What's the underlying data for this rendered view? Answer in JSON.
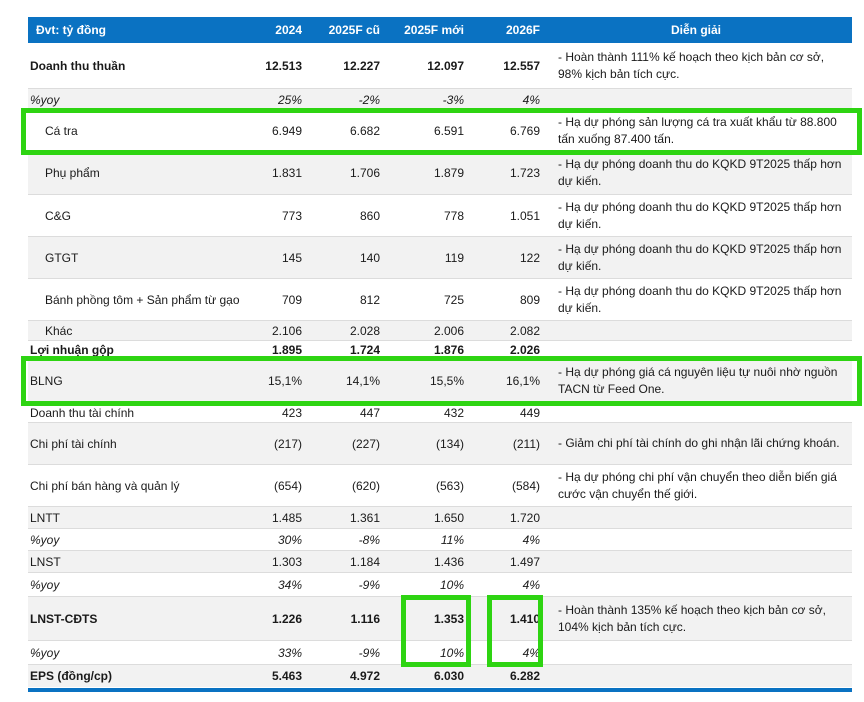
{
  "colors": {
    "header_bg": "#0a72c2",
    "header_text": "#ffffff",
    "highlight_green": "#2ed412",
    "row_shade": "#f2f2f2",
    "separator": "#dcdcdc",
    "bottom_bar": "#0a72c2"
  },
  "table": {
    "header": [
      "Đvt: tỷ đồng",
      "2024",
      "2025F cũ",
      "2025F mới",
      "2026F",
      "Diễn giải"
    ],
    "rows": [
      {
        "label": "Doanh thu thuần",
        "values": [
          "12.513",
          "12.227",
          "12.097",
          "12.557"
        ],
        "note": "- Hoàn thành 111% kế hoạch theo kịch bản cơ sở, 98% kịch bản tích cực.",
        "bold": true,
        "italic": false,
        "indent": false
      },
      {
        "label": "%yoy",
        "values": [
          "25%",
          "-2%",
          "-3%",
          "4%"
        ],
        "note": "",
        "bold": false,
        "italic": true,
        "indent": false
      },
      {
        "label": "Cá tra",
        "values": [
          "6.949",
          "6.682",
          "6.591",
          "6.769"
        ],
        "note": "- Hạ dự phóng sản lượng cá tra xuất khẩu từ 88.800 tấn xuống 87.400 tấn.",
        "bold": false,
        "italic": false,
        "indent": true
      },
      {
        "label": "Phụ phẩm",
        "values": [
          "1.831",
          "1.706",
          "1.879",
          "1.723"
        ],
        "note": "- Hạ dự phóng doanh thu do KQKD 9T2025 thấp hơn dự kiến.",
        "bold": false,
        "italic": false,
        "indent": true
      },
      {
        "label": "C&G",
        "values": [
          "773",
          "860",
          "778",
          "1.051"
        ],
        "note": "- Hạ dự phóng doanh thu do KQKD 9T2025 thấp hơn dự kiến.",
        "bold": false,
        "italic": false,
        "indent": true
      },
      {
        "label": "GTGT",
        "values": [
          "145",
          "140",
          "119",
          "122"
        ],
        "note": "- Hạ dự phóng doanh thu do KQKD 9T2025 thấp hơn dự kiến.",
        "bold": false,
        "italic": false,
        "indent": true
      },
      {
        "label": "Bánh phồng tôm + Sản phẩm từ gạo",
        "values": [
          "709",
          "812",
          "725",
          "809"
        ],
        "note": "- Hạ dự phóng doanh thu do KQKD 9T2025 thấp hơn dự kiến.",
        "bold": false,
        "italic": false,
        "indent": true
      },
      {
        "label": "Khác",
        "values": [
          "2.106",
          "2.028",
          "2.006",
          "2.082"
        ],
        "note": "",
        "bold": false,
        "italic": false,
        "indent": true
      },
      {
        "label": "Lợi nhuận gộp",
        "values": [
          "1.895",
          "1.724",
          "1.876",
          "2.026"
        ],
        "note": "",
        "bold": true,
        "italic": false,
        "indent": false
      },
      {
        "label": "BLNG",
        "values": [
          "15,1%",
          "14,1%",
          "15,5%",
          "16,1%"
        ],
        "note": "- Hạ dự phóng giá cá nguyên liệu tự nuôi nhờ nguồn TACN từ Feed One.",
        "bold": false,
        "italic": false,
        "indent": false
      },
      {
        "label": "Doanh thu tài chính",
        "values": [
          "423",
          "447",
          "432",
          "449"
        ],
        "note": "",
        "bold": false,
        "italic": false,
        "indent": false
      },
      {
        "label": "Chi phí tài chính",
        "values": [
          "(217)",
          "(227)",
          "(134)",
          "(211)"
        ],
        "note": "- Giảm chi phí tài chính do ghi nhận lãi chứng khoán.",
        "bold": false,
        "italic": false,
        "indent": false
      },
      {
        "label": "Chi phí bán hàng và quản lý",
        "values": [
          "(654)",
          "(620)",
          "(563)",
          "(584)"
        ],
        "note": "- Hạ dự phóng chi phí vận chuyển theo diễn biến giá cước vận chuyển thế giới.",
        "bold": false,
        "italic": false,
        "indent": false
      },
      {
        "label": "LNTT",
        "values": [
          "1.485",
          "1.361",
          "1.650",
          "1.720"
        ],
        "note": "",
        "bold": false,
        "italic": false,
        "indent": false
      },
      {
        "label": "%yoy",
        "values": [
          "30%",
          "-8%",
          "11%",
          "4%"
        ],
        "note": "",
        "bold": false,
        "italic": true,
        "indent": false
      },
      {
        "label": "LNST",
        "values": [
          "1.303",
          "1.184",
          "1.436",
          "1.497"
        ],
        "note": "",
        "bold": false,
        "italic": false,
        "indent": false
      },
      {
        "label": "%yoy",
        "values": [
          "34%",
          "-9%",
          "10%",
          "4%"
        ],
        "note": "",
        "bold": false,
        "italic": true,
        "indent": false
      },
      {
        "label": "LNST-CĐTS",
        "values": [
          "1.226",
          "1.116",
          "1.353",
          "1.410"
        ],
        "note": "- Hoàn thành 135% kế hoạch theo kịch bản cơ sở, 104% kịch bản tích cực.",
        "bold": true,
        "italic": false,
        "indent": false
      },
      {
        "label": "%yoy",
        "values": [
          "33%",
          "-9%",
          "10%",
          "4%"
        ],
        "note": "",
        "bold": false,
        "italic": true,
        "indent": false
      },
      {
        "label": "EPS (đồng/cp)",
        "values": [
          "5.463",
          "4.972",
          "6.030",
          "6.282"
        ],
        "note": "",
        "bold": true,
        "italic": false,
        "indent": false
      }
    ]
  },
  "annotations": {
    "row_boxes": [
      2,
      9
    ],
    "cell_boxes": [
      {
        "col": 3,
        "row_start": 17,
        "row_end": 18
      },
      {
        "col": 4,
        "row_start": 17,
        "row_end": 18
      }
    ]
  }
}
